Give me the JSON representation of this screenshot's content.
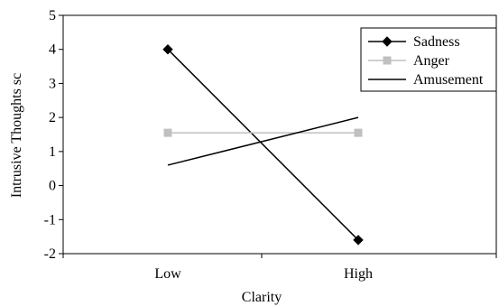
{
  "chart_data": {
    "type": "line",
    "categories": [
      "Low",
      "High"
    ],
    "xlabel": "Clarity",
    "ylabel": "Intrusive Thoughts sc",
    "ylim": [
      -2,
      5
    ],
    "yticks": [
      "5",
      "4",
      "3",
      "2",
      "1",
      "0",
      "-1",
      "-2"
    ],
    "ytick_values": [
      5,
      4,
      3,
      2,
      1,
      0,
      -1,
      -2
    ],
    "grid": false,
    "legend_position": "top-right",
    "series": [
      {
        "name": "Sadness",
        "values": [
          4.0,
          -1.6
        ],
        "color": "#000000",
        "marker": "diamond"
      },
      {
        "name": "Anger",
        "values": [
          1.55,
          1.55
        ],
        "color": "#c0c0c0",
        "marker": "square"
      },
      {
        "name": "Amusement",
        "values": [
          0.6,
          2.0
        ],
        "color": "#000000",
        "marker": "none"
      }
    ]
  }
}
